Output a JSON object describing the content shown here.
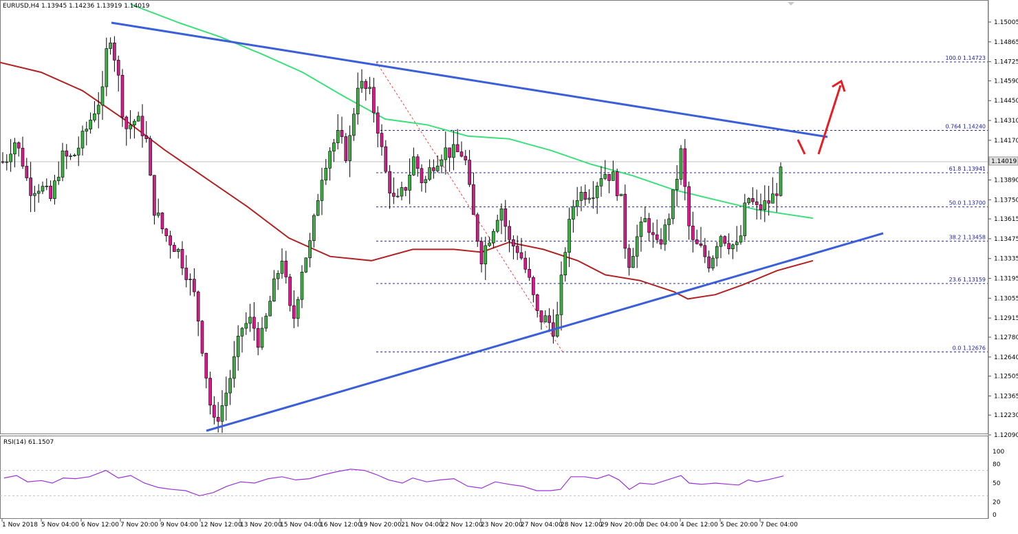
{
  "header": {
    "symbol_info": "EURUSD,H4  1.13945 1.14236 1.13919 1.14019"
  },
  "current_price": {
    "value": 1.14019,
    "label": "1.14019"
  },
  "colors": {
    "bull": "#3cb043",
    "bear": "#d81b8c",
    "trendline": "#3a5fd8",
    "fib": "#2020c0",
    "ma_long": "#b22222",
    "ma_short": "#3ce07a",
    "rsi": "#9b30d8",
    "arrow": "#e81c24",
    "zigzag": "#ff4040"
  },
  "chart_data": [
    {
      "type": "candlestick",
      "title": "EURUSD,H4",
      "ohlc_last": {
        "open": 1.13945,
        "high": 1.14236,
        "low": 1.13919,
        "close": 1.14019
      },
      "ylim": [
        1.1209,
        1.1513
      ],
      "y_ticks": [
        "1.15005",
        "1.14865",
        "1.14725",
        "1.14590",
        "1.14450",
        "1.14310",
        "1.14170",
        "1.14030",
        "1.13890",
        "1.13750",
        "1.13615",
        "1.13475",
        "1.13335",
        "1.13195",
        "1.13055",
        "1.12915",
        "1.12780",
        "1.12640",
        "1.12505",
        "1.12365",
        "1.12230",
        "1.12090"
      ],
      "x_ticks": [
        "1 Nov 2018",
        "5 Nov 04:00",
        "6 Nov 12:00",
        "7 Nov 20:00",
        "9 Nov 04:00",
        "12 Nov 12:00",
        "13 Nov 20:00",
        "15 Nov 04:00",
        "16 Nov 12:00",
        "19 Nov 20:00",
        "21 Nov 04:00",
        "22 Nov 12:00",
        "23 Nov 20:00",
        "27 Nov 04:00",
        "28 Nov 12:00",
        "29 Nov 20:00",
        "3 Dec 04:00",
        "4 Dec 12:00",
        "5 Dec 20:00",
        "7 Dec 04:00"
      ],
      "fibonacci": [
        {
          "label": "100.0 1.14723",
          "price": 1.14723
        },
        {
          "label": "0.764 1.14240",
          "price": 1.1424
        },
        {
          "label": "61.8 1.13941",
          "price": 1.13941
        },
        {
          "label": "50.0 1.13700",
          "price": 1.137
        },
        {
          "label": "38.2 1.13458",
          "price": 1.13458
        },
        {
          "label": "23.6 1.13159",
          "price": 1.13159
        },
        {
          "label": "0.0 1.12676",
          "price": 1.12676
        }
      ],
      "grid": false
    },
    {
      "type": "line",
      "title": "RSI(14) 61.1507",
      "ylim": [
        0,
        100
      ],
      "y_ticks": [
        "100",
        "80",
        "50",
        "20",
        "0"
      ],
      "levels": [
        70,
        30
      ],
      "last_value": 61.1507
    }
  ]
}
